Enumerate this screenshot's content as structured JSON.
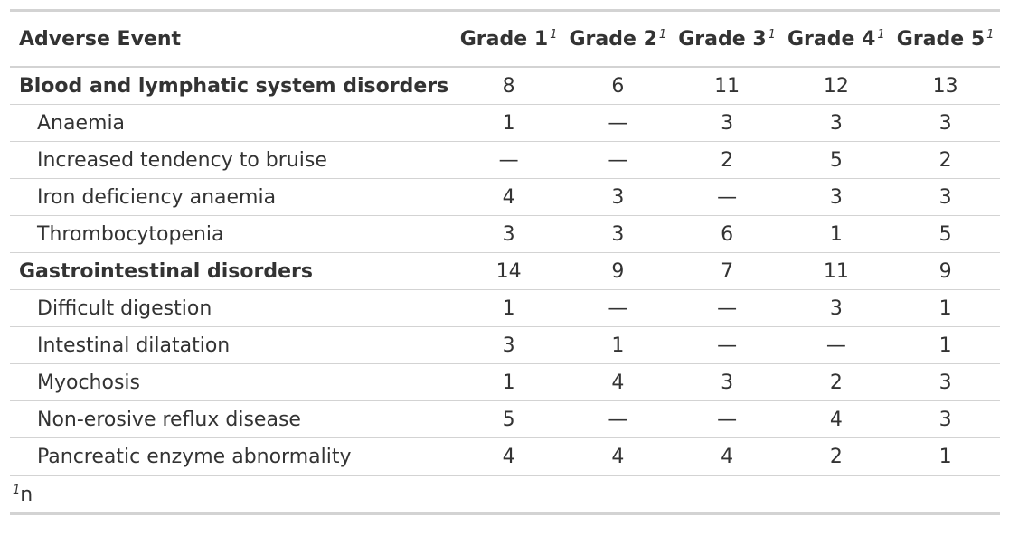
{
  "table": {
    "header": {
      "label": "Adverse Event",
      "grades": [
        "Grade 1",
        "Grade 2",
        "Grade 3",
        "Grade 4",
        "Grade 5"
      ],
      "footnote_mark": "1"
    },
    "rows": [
      {
        "label": "Blood and lymphatic system disorders",
        "group": true,
        "values": [
          "8",
          "6",
          "11",
          "12",
          "13"
        ]
      },
      {
        "label": "Anaemia",
        "group": false,
        "values": [
          "1",
          "—",
          "3",
          "3",
          "3"
        ]
      },
      {
        "label": "Increased tendency to bruise",
        "group": false,
        "values": [
          "—",
          "—",
          "2",
          "5",
          "2"
        ]
      },
      {
        "label": "Iron deficiency anaemia",
        "group": false,
        "values": [
          "4",
          "3",
          "—",
          "3",
          "3"
        ]
      },
      {
        "label": "Thrombocytopenia",
        "group": false,
        "values": [
          "3",
          "3",
          "6",
          "1",
          "5"
        ]
      },
      {
        "label": "Gastrointestinal disorders",
        "group": true,
        "values": [
          "14",
          "9",
          "7",
          "11",
          "9"
        ]
      },
      {
        "label": "Difficult digestion",
        "group": false,
        "values": [
          "1",
          "—",
          "—",
          "3",
          "1"
        ]
      },
      {
        "label": "Intestinal dilatation",
        "group": false,
        "values": [
          "3",
          "1",
          "—",
          "—",
          "1"
        ]
      },
      {
        "label": "Myochosis",
        "group": false,
        "values": [
          "1",
          "4",
          "3",
          "2",
          "3"
        ]
      },
      {
        "label": "Non-erosive reflux disease",
        "group": false,
        "values": [
          "5",
          "—",
          "—",
          "4",
          "3"
        ]
      },
      {
        "label": "Pancreatic enzyme abnormality",
        "group": false,
        "values": [
          "4",
          "4",
          "4",
          "2",
          "1"
        ]
      }
    ],
    "footnote": {
      "mark": "1",
      "text": "n"
    }
  }
}
